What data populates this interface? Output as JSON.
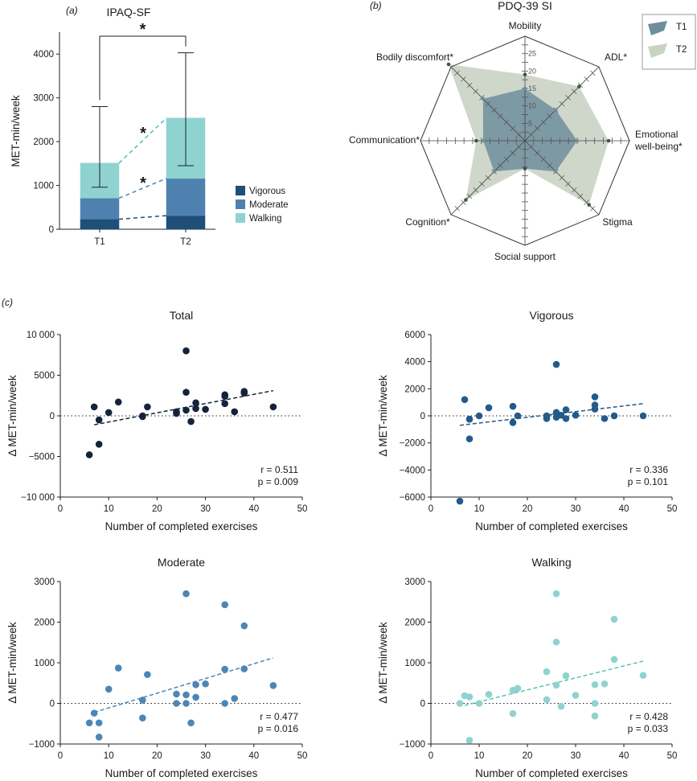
{
  "chart_data": [
    {
      "panel": "(a)",
      "type": "bar",
      "stacked": true,
      "title": "IPAQ-SF",
      "ylabel": "MET-min/week",
      "xlabel": "",
      "ylim": [
        0,
        4500
      ],
      "yticks": [
        0,
        1000,
        2000,
        3000,
        4000
      ],
      "categories": [
        "T1",
        "T2"
      ],
      "series": [
        {
          "name": "Vigorous",
          "values": [
            230,
            310
          ],
          "color": "#1f4e79"
        },
        {
          "name": "Moderate",
          "values": [
            480,
            850
          ],
          "color": "#4f81b0"
        },
        {
          "name": "Walking",
          "values": [
            800,
            1380
          ],
          "color": "#8ed3cf"
        }
      ],
      "error_bars": {
        "upper": [
          2800,
          4030
        ],
        "lower": [
          960,
          1450
        ]
      },
      "significance": [
        {
          "label": "*",
          "between": "T1 and T2 total"
        },
        {
          "label": "*",
          "series": "Walking"
        },
        {
          "label": "*",
          "series": "Moderate"
        }
      ],
      "legend": "right"
    },
    {
      "panel": "(b)",
      "type": "radar",
      "title": "PDQ-39 SI",
      "axes": [
        "Mobility",
        "ADL*",
        "Emotional well-being*",
        "Stigma",
        "Social support",
        "Cognition*",
        "Communication*",
        "Bodily discomfort*"
      ],
      "rlim": [
        0,
        30
      ],
      "rticks": [
        5,
        10,
        15,
        20,
        25
      ],
      "series": [
        {
          "name": "T1",
          "values": [
            15,
            12.5,
            15,
            12.5,
            8,
            12.5,
            12,
            17
          ],
          "color": "#6f8e9c"
        },
        {
          "name": "T2",
          "values": [
            19,
            22,
            24,
            26,
            8,
            24,
            14,
            31
          ],
          "color": "#c9d3c4"
        }
      ],
      "legend": "top-right"
    },
    {
      "panel": "(c)",
      "type": "scatter",
      "title": "Total",
      "xlabel": "Number of completed exercises",
      "ylabel": "Δ MET-min/week",
      "xlim": [
        0,
        50
      ],
      "ylim": [
        -10000,
        10000
      ],
      "xticks": [
        0,
        10,
        20,
        30,
        40,
        50
      ],
      "yticks": [
        -10000,
        -5000,
        0,
        5000,
        10000
      ],
      "ytick_labels": [
        "−10 000",
        "−5000",
        "0",
        "5000",
        "10 000"
      ],
      "color": "#14233b",
      "x": [
        6,
        7,
        8,
        8,
        10,
        12,
        17,
        17,
        18,
        24,
        24,
        26,
        26,
        26,
        27,
        28,
        28,
        30,
        34,
        34,
        34,
        36,
        38,
        38,
        44
      ],
      "y": [
        -4800,
        1100,
        -500,
        -3500,
        400,
        1700,
        0,
        -100,
        1100,
        500,
        300,
        8000,
        2900,
        700,
        -700,
        1600,
        900,
        800,
        1500,
        2600,
        2400,
        500,
        2800,
        3000,
        1100
      ],
      "trend": {
        "x": [
          7,
          44
        ],
        "y": [
          -1100,
          3100
        ]
      },
      "r_label": "r = 0.511",
      "p_label": "p = 0.009"
    },
    {
      "type": "scatter",
      "title": "Vigorous",
      "xlabel": "Number of completed exercises",
      "ylabel": "Δ MET-min/week",
      "xlim": [
        0,
        50
      ],
      "ylim": [
        -6000,
        6000
      ],
      "xticks": [
        0,
        10,
        20,
        30,
        40,
        50
      ],
      "yticks": [
        -6000,
        -4000,
        -2000,
        0,
        2000,
        4000,
        6000
      ],
      "ytick_labels": [
        "−6000",
        "−4000",
        "−2000",
        "0",
        "2000",
        "4000",
        "6000"
      ],
      "color": "#245a8a",
      "x": [
        6,
        7,
        8,
        8,
        10,
        12,
        17,
        17,
        18,
        24,
        24,
        26,
        26,
        26,
        27,
        28,
        28,
        30,
        34,
        34,
        34,
        36,
        38,
        44
      ],
      "y": [
        -6300,
        1200,
        -1700,
        -250,
        0,
        600,
        700,
        -500,
        0,
        0,
        -200,
        3800,
        250,
        -100,
        50,
        -200,
        450,
        50,
        1400,
        800,
        500,
        -200,
        0,
        0
      ],
      "trend": {
        "x": [
          6,
          44
        ],
        "y": [
          -700,
          900
        ]
      },
      "r_label": "r = 0.336",
      "p_label": "p = 0.101"
    },
    {
      "type": "scatter",
      "title": "Moderate",
      "xlabel": "Number of completed exercises",
      "ylabel": "Δ MET-min/week",
      "xlim": [
        0,
        50
      ],
      "ylim": [
        -1000,
        3000
      ],
      "xticks": [
        0,
        10,
        20,
        30,
        40,
        50
      ],
      "yticks": [
        -1000,
        0,
        1000,
        2000,
        3000
      ],
      "ytick_labels": [
        "−1000",
        "0",
        "1000",
        "2000",
        "3000"
      ],
      "color": "#4d86b5",
      "x": [
        6,
        7,
        8,
        8,
        10,
        12,
        17,
        17,
        18,
        24,
        24,
        26,
        26,
        26,
        27,
        28,
        28,
        30,
        34,
        34,
        34,
        36,
        38,
        38,
        44
      ],
      "y": [
        -480,
        -240,
        -480,
        -830,
        350,
        870,
        80,
        -360,
        710,
        230,
        0,
        2700,
        210,
        0,
        -480,
        150,
        460,
        480,
        2430,
        840,
        0,
        120,
        850,
        1910,
        440
      ],
      "trend": {
        "x": [
          7,
          44
        ],
        "y": [
          -220,
          1120
        ]
      },
      "r_label": "r = 0.477",
      "p_label": "p = 0.016"
    },
    {
      "type": "scatter",
      "title": "Walking",
      "xlabel": "Number of completed exercises",
      "ylabel": "Δ MET-min/week",
      "xlim": [
        0,
        50
      ],
      "ylim": [
        -1000,
        3000
      ],
      "xticks": [
        0,
        10,
        20,
        30,
        40,
        50
      ],
      "yticks": [
        -1000,
        0,
        1000,
        2000,
        3000
      ],
      "ytick_labels": [
        "−1000",
        "0",
        "1000",
        "2000",
        "3000"
      ],
      "color": "#8ed3cf",
      "x": [
        6,
        7,
        8,
        8,
        10,
        12,
        17,
        17,
        18,
        24,
        24,
        26,
        26,
        26,
        27,
        28,
        30,
        34,
        34,
        34,
        36,
        38,
        38,
        44
      ],
      "y": [
        0,
        190,
        160,
        -910,
        0,
        220,
        320,
        -250,
        370,
        780,
        90,
        2700,
        1510,
        450,
        -70,
        680,
        200,
        460,
        0,
        -310,
        480,
        2070,
        1080,
        690
      ],
      "trend": {
        "x": [
          7,
          44
        ],
        "y": [
          -50,
          1040
        ]
      },
      "r_label": "r = 0.428",
      "p_label": "p = 0.033"
    }
  ],
  "panels": {
    "c_label": "(c)"
  },
  "legend_stacked": [
    "Vigorous",
    "Moderate",
    "Walking"
  ],
  "legend_radar": [
    "T1",
    "T2"
  ]
}
